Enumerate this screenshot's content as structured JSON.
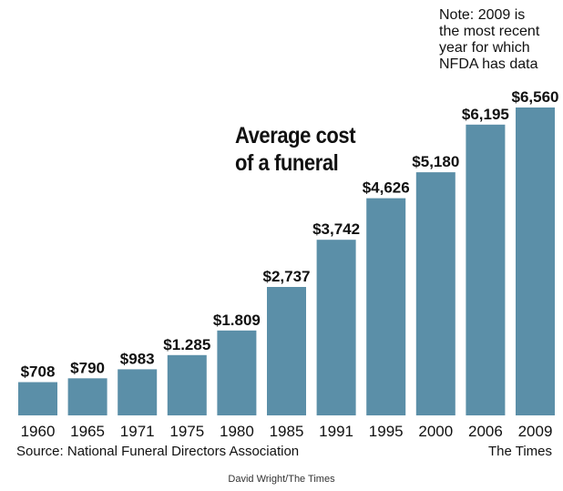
{
  "chart_data": {
    "type": "bar",
    "title_lines": [
      "Average cost",
      "of a funeral"
    ],
    "categories": [
      "1960",
      "1965",
      "1971",
      "1975",
      "1980",
      "1985",
      "1991",
      "1995",
      "2000",
      "2006",
      "2009"
    ],
    "values": [
      708,
      790,
      983,
      1285,
      1809,
      2737,
      3742,
      4626,
      5180,
      6195,
      6560
    ],
    "value_labels": [
      "$708",
      "$790",
      "$983",
      "$1.285",
      "$1.809",
      "$2,737",
      "$3,742",
      "$4,626",
      "$5,180",
      "$6,195",
      "$6,560"
    ],
    "bar_color": "#5b8fa8",
    "ylim": [
      0,
      6560
    ],
    "grid": false,
    "legend": null
  },
  "note_lines": [
    "Note: 2009 is",
    "the most recent",
    "year for which",
    "NFDA has data"
  ],
  "source": "Source: National Funeral Directors Association",
  "publication": "The Times",
  "credit": "David Wright/The Times"
}
